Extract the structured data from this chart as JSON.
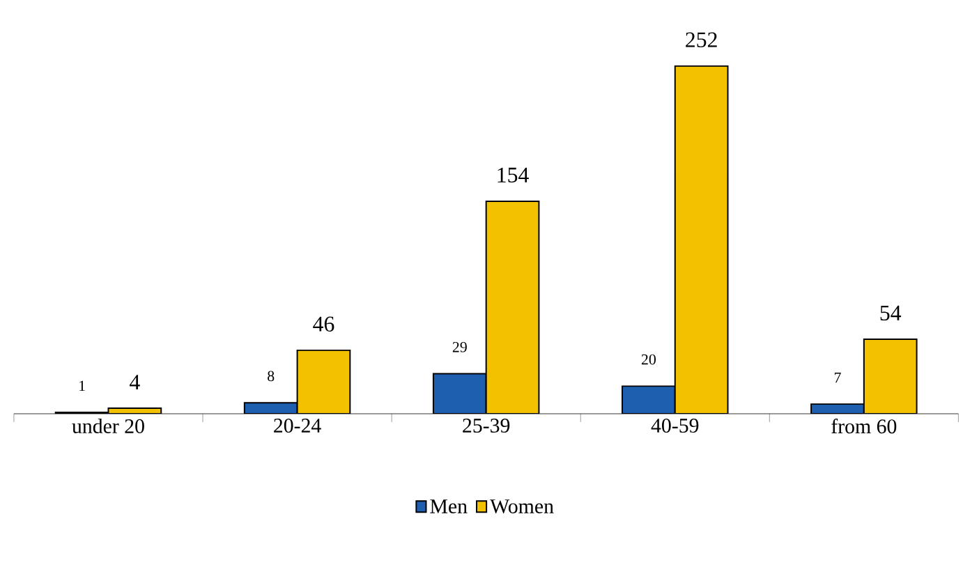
{
  "chart_data": {
    "type": "bar",
    "categories": [
      "under 20",
      "20-24",
      "25-39",
      "40-59",
      "from 60"
    ],
    "series": [
      {
        "name": "Men",
        "color": "#1f5fb0",
        "values": [
          1,
          8,
          29,
          20,
          7
        ]
      },
      {
        "name": "Women",
        "color": "#f2c200",
        "values": [
          4,
          46,
          154,
          252,
          54
        ]
      }
    ],
    "data_labels": true,
    "legend": "bottom"
  }
}
